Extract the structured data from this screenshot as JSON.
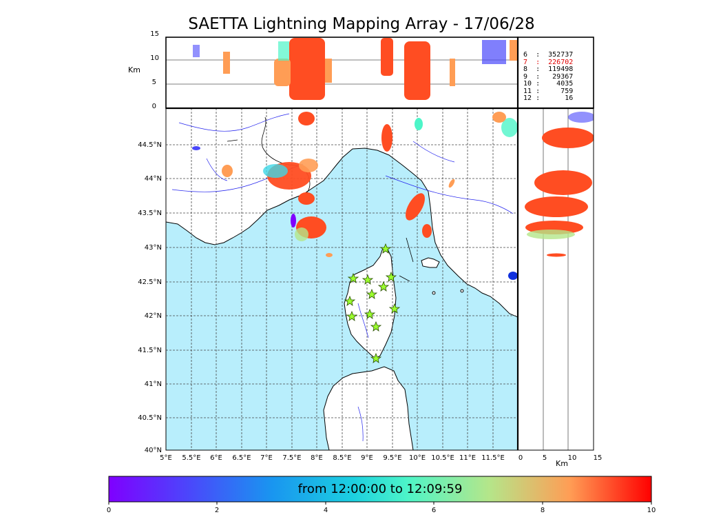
{
  "title": "SAETTA Lightning Mapping Array - 17/06/28",
  "altitude_panel": {
    "unit_label": "Km",
    "y_ticks": [
      "15",
      "10",
      "5",
      "0"
    ]
  },
  "side_panel": {
    "unit_label": "Km",
    "x_ticks": [
      "0",
      "5",
      "10",
      "15"
    ]
  },
  "map": {
    "lat_labels": [
      "44.5°N",
      "44°N",
      "43.5°N",
      "43°N",
      "42.5°N",
      "42°N",
      "41.5°N",
      "41°N",
      "40.5°N",
      "40°N"
    ],
    "lon_labels": [
      "5°E",
      "5.5°E",
      "6°E",
      "6.5°E",
      "7°E",
      "7.5°E",
      "8°E",
      "8.5°E",
      "9°E",
      "9.5°E",
      "10°E",
      "10.5°E",
      "11°E",
      "11.5°E"
    ],
    "sea_color": "#b8eefc",
    "land_color": "#ffffff",
    "station_count": 12
  },
  "station_counts": [
    {
      "stations": "6",
      "count": "352737",
      "highlight": false
    },
    {
      "stations": "7",
      "count": "226702",
      "highlight": true
    },
    {
      "stations": "8",
      "count": "119498",
      "highlight": false
    },
    {
      "stations": "9",
      "count": "29367",
      "highlight": false
    },
    {
      "stations": "10",
      "count": "4035",
      "highlight": false
    },
    {
      "stations": "11",
      "count": "759",
      "highlight": false
    },
    {
      "stations": "12",
      "count": "16",
      "highlight": false
    }
  ],
  "colorbar": {
    "label": "from 12:00:00 to 12:09:59",
    "ticks": [
      "0",
      "2",
      "4",
      "6",
      "8",
      "10"
    ],
    "colormap": "rainbow"
  }
}
